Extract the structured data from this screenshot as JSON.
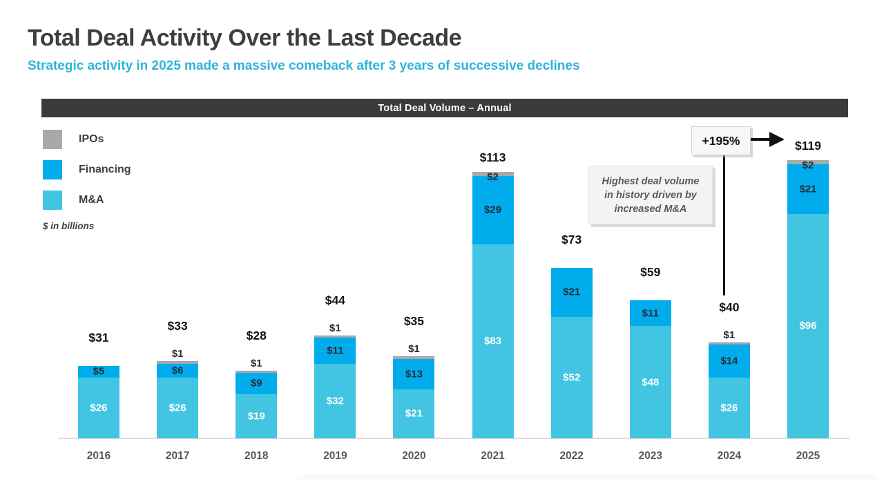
{
  "page": {
    "title": "Total Deal Activity Over the Last Decade",
    "subtitle": "Strategic activity in 2025 made a massive comeback after 3 years of successive declines"
  },
  "chart_header": {
    "label": "Total Deal Volume – Annual"
  },
  "legend": {
    "items": [
      {
        "label": "IPOs",
        "color": "#a9a9a9"
      },
      {
        "label": "Financing",
        "color": "#00acec"
      },
      {
        "label": "M&A",
        "color": "#42c5e2"
      }
    ],
    "note": "$ in billions"
  },
  "annotations": {
    "growth_callout": "+195%",
    "note_box": {
      "lines": [
        "Highest deal volume",
        "in history driven by",
        "increased M&A"
      ]
    }
  },
  "chart_data": {
    "type": "bar",
    "stacked": true,
    "title": "Total Deal Volume – Annual",
    "units_note": "$ in billions",
    "categories": [
      "2016",
      "2017",
      "2018",
      "2019",
      "2020",
      "2021",
      "2022",
      "2023",
      "2024",
      "2025"
    ],
    "series": [
      {
        "name": "M&A",
        "color": "#42c5e2",
        "values": [
          26,
          26,
          19,
          32,
          21,
          83,
          52,
          48,
          26,
          96
        ]
      },
      {
        "name": "Financing",
        "color": "#00acec",
        "values": [
          5,
          6,
          9,
          11,
          13,
          29,
          21,
          11,
          14,
          21
        ]
      },
      {
        "name": "IPOs",
        "color": "#a9a9a9",
        "values": [
          0,
          1,
          1,
          1,
          1,
          2,
          0,
          0,
          1,
          2
        ]
      }
    ],
    "totals": [
      31,
      33,
      28,
      44,
      35,
      113,
      73,
      59,
      40,
      119
    ],
    "currency_prefix": "$",
    "legend_position": "top-left",
    "gridlines": false,
    "baseline_color": "#dcdcdc",
    "growth_annotation": {
      "label": "+195%",
      "from_category": "2024",
      "to_category": "2025"
    }
  }
}
